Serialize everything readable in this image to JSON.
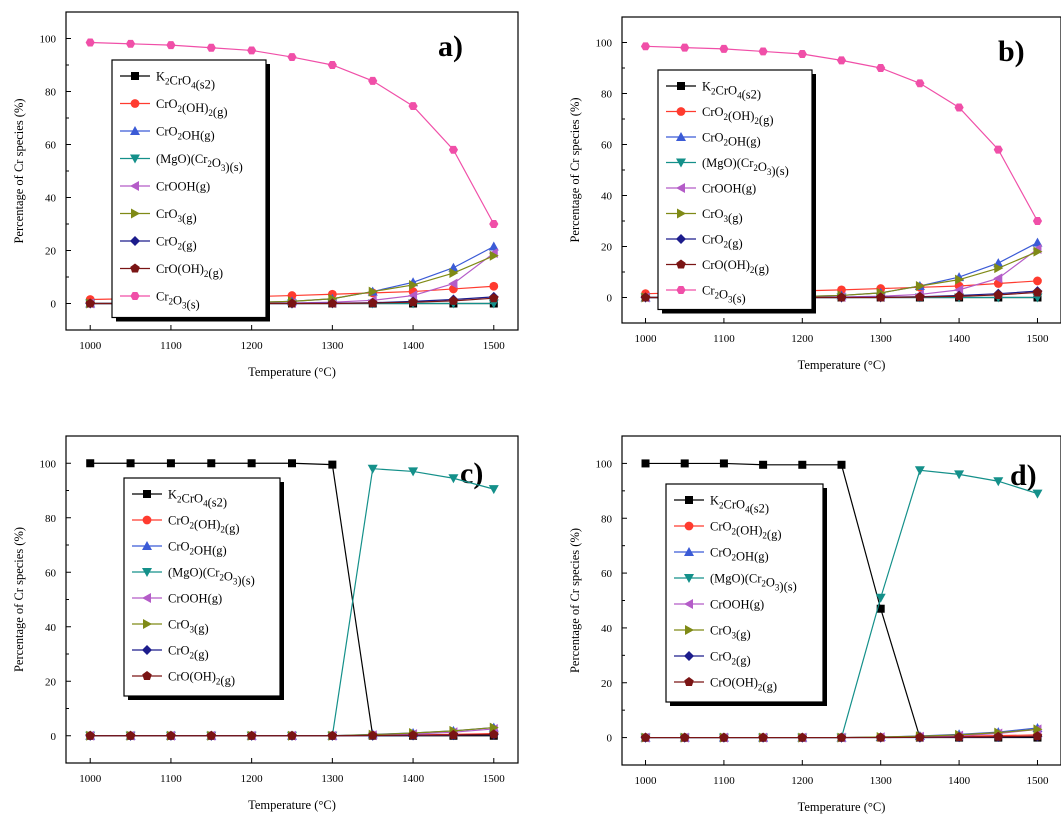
{
  "colors": {
    "K2CrO4": "#000000",
    "CrO2OH2": "#ff3b2f",
    "CrO2OH": "#3b5bd6",
    "MgOCr2O3": "#14908a",
    "CrOOH": "#b45cc8",
    "CrO3": "#7f8a16",
    "CrO2": "#1c1c8c",
    "CrOOH2": "#7a1414",
    "Cr2O3": "#f04fa8"
  },
  "chart_data": [
    {
      "type": "line",
      "panel_label": "a)",
      "xlabel": "Temperature (°C)",
      "ylabel": "Percentage of Cr species (%)",
      "xlim": [
        970,
        1530
      ],
      "ylim": [
        -10,
        110
      ],
      "x_ticks": [
        1000,
        1100,
        1200,
        1300,
        1400,
        1500
      ],
      "y_ticks": [
        0,
        20,
        40,
        60,
        80,
        100
      ],
      "x": [
        1000,
        1050,
        1100,
        1150,
        1200,
        1250,
        1300,
        1350,
        1400,
        1450,
        1500
      ],
      "legend_location": "upper-left",
      "series": [
        {
          "name": "K2CrO4(s2)",
          "sub": [
            null,
            "2",
            "4",
            null
          ],
          "base": [
            "K",
            "Cr",
            "O",
            "(s2)"
          ],
          "marker": "square",
          "color_key": "K2CrO4",
          "values": [
            0,
            0,
            0,
            0,
            0,
            0,
            0,
            0,
            0,
            0,
            0
          ]
        },
        {
          "name": "CrO2(OH)2(g)",
          "marker": "circle",
          "color_key": "CrO2OH2",
          "values": [
            1.5,
            1.8,
            2.0,
            2.3,
            2.6,
            3.0,
            3.5,
            4.0,
            4.5,
            5.5,
            6.5
          ]
        },
        {
          "name": "CrO2OH(g)",
          "marker": "triangle-up",
          "color_key": "CrO2OH",
          "values": [
            0,
            0,
            0.1,
            0.2,
            0.4,
            0.8,
            1.8,
            4.5,
            8,
            13.5,
            21.5
          ]
        },
        {
          "name": "(MgO)(Cr2O3)(s)",
          "marker": "triangle-down",
          "color_key": "MgOCr2O3",
          "values": [
            0,
            0,
            0,
            0,
            0,
            0,
            0,
            0,
            0,
            0,
            0
          ]
        },
        {
          "name": "CrOOH(g)",
          "marker": "triangle-left",
          "color_key": "CrOOH",
          "values": [
            0,
            0,
            0,
            0,
            0.1,
            0.2,
            0.5,
            1.2,
            3,
            7.5,
            19
          ]
        },
        {
          "name": "CrO3(g)",
          "marker": "triangle-right",
          "color_key": "CrO3",
          "values": [
            0,
            0,
            0.1,
            0.2,
            0.4,
            0.8,
            1.8,
            4.5,
            7,
            11.5,
            18
          ]
        },
        {
          "name": "CrO2(g)",
          "marker": "diamond",
          "color_key": "CrO2",
          "values": [
            0,
            0,
            0,
            0,
            0,
            0,
            0.1,
            0.3,
            0.8,
            1.5,
            2.5
          ]
        },
        {
          "name": "CrO(OH)2(g)",
          "marker": "pentagon",
          "color_key": "CrOOH2",
          "values": [
            0,
            0,
            0,
            0,
            0,
            0,
            0,
            0.2,
            0.5,
            1.0,
            2.0
          ]
        },
        {
          "name": "Cr2O3(s)",
          "marker": "hexagon",
          "color_key": "Cr2O3",
          "values": [
            98.5,
            98,
            97.5,
            96.5,
            95.5,
            93,
            90,
            84,
            74.5,
            58,
            30
          ]
        }
      ]
    },
    {
      "type": "line",
      "panel_label": "b)",
      "xlabel": "Temperature (°C)",
      "ylabel": "Percentage of Cr species (%)",
      "xlim": [
        970,
        1530
      ],
      "ylim": [
        -10,
        110
      ],
      "x_ticks": [
        1000,
        1100,
        1200,
        1300,
        1400,
        1500
      ],
      "y_ticks": [
        0,
        20,
        40,
        60,
        80,
        100
      ],
      "x": [
        1000,
        1050,
        1100,
        1150,
        1200,
        1250,
        1300,
        1350,
        1400,
        1450,
        1500
      ],
      "legend_location": "upper-left",
      "series": [
        {
          "name": "K2CrO4(s2)",
          "marker": "square",
          "color_key": "K2CrO4",
          "values": [
            0,
            0,
            0,
            0,
            0,
            0,
            0,
            0,
            0,
            0,
            0
          ]
        },
        {
          "name": "CrO2(OH)2(g)",
          "marker": "circle",
          "color_key": "CrO2OH2",
          "values": [
            1.5,
            1.8,
            2.0,
            2.3,
            2.6,
            3.0,
            3.5,
            4.0,
            4.5,
            5.5,
            6.5
          ]
        },
        {
          "name": "CrO2OH(g)",
          "marker": "triangle-up",
          "color_key": "CrO2OH",
          "values": [
            0,
            0,
            0.1,
            0.2,
            0.4,
            0.8,
            1.8,
            4.5,
            8,
            13.5,
            21.5
          ]
        },
        {
          "name": "(MgO)(Cr2O3)(s)",
          "marker": "triangle-down",
          "color_key": "MgOCr2O3",
          "values": [
            0,
            0,
            0,
            0,
            0,
            0,
            0,
            0,
            0,
            0,
            0
          ]
        },
        {
          "name": "CrOOH(g)",
          "marker": "triangle-left",
          "color_key": "CrOOH",
          "values": [
            0,
            0,
            0,
            0,
            0.1,
            0.2,
            0.5,
            1.2,
            3,
            7.5,
            19
          ]
        },
        {
          "name": "CrO3(g)",
          "marker": "triangle-right",
          "color_key": "CrO3",
          "values": [
            0,
            0,
            0.1,
            0.2,
            0.4,
            0.8,
            1.8,
            4.5,
            7,
            11.5,
            18
          ]
        },
        {
          "name": "CrO2(g)",
          "marker": "diamond",
          "color_key": "CrO2",
          "values": [
            0,
            0,
            0,
            0,
            0,
            0,
            0.1,
            0.3,
            0.8,
            1.5,
            2.5
          ]
        },
        {
          "name": "CrO(OH)2(g)",
          "marker": "pentagon",
          "color_key": "CrOOH2",
          "values": [
            0,
            0,
            0,
            0,
            0,
            0,
            0,
            0.2,
            0.5,
            1.0,
            2.0
          ]
        },
        {
          "name": "Cr2O3(s)",
          "marker": "hexagon",
          "color_key": "Cr2O3",
          "values": [
            98.5,
            98,
            97.5,
            96.5,
            95.5,
            93,
            90,
            84,
            74.5,
            58,
            30
          ]
        }
      ]
    },
    {
      "type": "line",
      "panel_label": "c)",
      "xlabel": "Temperature (°C)",
      "ylabel": "Percentage of Cr species (%)",
      "xlim": [
        970,
        1530
      ],
      "ylim": [
        -10,
        110
      ],
      "x_ticks": [
        1000,
        1100,
        1200,
        1300,
        1400,
        1500
      ],
      "y_ticks": [
        0,
        20,
        40,
        60,
        80,
        100
      ],
      "x": [
        1000,
        1050,
        1100,
        1150,
        1200,
        1250,
        1300,
        1350,
        1400,
        1450,
        1500
      ],
      "legend_location": "upper-left",
      "series": [
        {
          "name": "K2CrO4(s2)",
          "marker": "square",
          "color_key": "K2CrO4",
          "values": [
            100,
            100,
            100,
            100,
            100,
            100,
            99.5,
            0,
            0,
            0,
            0
          ]
        },
        {
          "name": "CrO2(OH)2(g)",
          "marker": "circle",
          "color_key": "CrO2OH2",
          "values": [
            0,
            0,
            0,
            0,
            0,
            0,
            0,
            0.2,
            0.3,
            0.5,
            0.8
          ]
        },
        {
          "name": "CrO2OH(g)",
          "marker": "triangle-up",
          "color_key": "CrO2OH",
          "values": [
            0,
            0,
            0,
            0,
            0,
            0,
            0,
            0.5,
            1.0,
            1.8,
            3.0
          ]
        },
        {
          "name": "(MgO)(Cr2O3)(s)",
          "marker": "triangle-down",
          "color_key": "MgOCr2O3",
          "values": [
            0,
            0,
            0,
            0,
            0,
            0,
            0,
            98,
            97,
            94.5,
            90.5
          ]
        },
        {
          "name": "CrOOH(g)",
          "marker": "triangle-left",
          "color_key": "CrOOH",
          "values": [
            0,
            0,
            0,
            0,
            0,
            0,
            0,
            0.2,
            0.6,
            1.3,
            2.5
          ]
        },
        {
          "name": "CrO3(g)",
          "marker": "triangle-right",
          "color_key": "CrO3",
          "values": [
            0,
            0,
            0,
            0,
            0,
            0,
            0,
            0.4,
            1.0,
            1.8,
            3.0
          ]
        },
        {
          "name": "CrO2(g)",
          "marker": "diamond",
          "color_key": "CrO2",
          "values": [
            0,
            0,
            0,
            0,
            0,
            0,
            0,
            0,
            0.1,
            0.2,
            0.4
          ]
        },
        {
          "name": "CrO(OH)2(g)",
          "marker": "pentagon",
          "color_key": "CrOOH2",
          "values": [
            0,
            0,
            0,
            0,
            0,
            0,
            0,
            0.1,
            0.2,
            0.3,
            0.5
          ]
        }
      ]
    },
    {
      "type": "line",
      "panel_label": "d)",
      "xlabel": "Temperature (°C)",
      "ylabel": "Percentage of Cr species (%)",
      "xlim": [
        970,
        1530
      ],
      "ylim": [
        -10,
        110
      ],
      "x_ticks": [
        1000,
        1100,
        1200,
        1300,
        1400,
        1500
      ],
      "y_ticks": [
        0,
        20,
        40,
        60,
        80,
        100
      ],
      "x": [
        1000,
        1050,
        1100,
        1150,
        1200,
        1250,
        1300,
        1350,
        1400,
        1450,
        1500
      ],
      "legend_location": "upper-left",
      "series": [
        {
          "name": "K2CrO4(s2)",
          "marker": "square",
          "color_key": "K2CrO4",
          "values": [
            100,
            100,
            100,
            99.5,
            99.5,
            99.5,
            47,
            0,
            0,
            0,
            0
          ]
        },
        {
          "name": "CrO2(OH)2(g)",
          "marker": "circle",
          "color_key": "CrO2OH2",
          "values": [
            0,
            0,
            0,
            0,
            0,
            0,
            0.1,
            0.3,
            0.5,
            0.7,
            1.0
          ]
        },
        {
          "name": "CrO2OH(g)",
          "marker": "triangle-up",
          "color_key": "CrO2OH",
          "values": [
            0,
            0,
            0,
            0,
            0,
            0,
            0.2,
            0.6,
            1.2,
            2.0,
            3.5
          ]
        },
        {
          "name": "(MgO)(Cr2O3)(s)",
          "marker": "triangle-down",
          "color_key": "MgOCr2O3",
          "values": [
            0,
            0,
            0,
            0,
            0,
            0,
            51,
            97.5,
            96,
            93.5,
            89
          ]
        },
        {
          "name": "CrOOH(g)",
          "marker": "triangle-left",
          "color_key": "CrOOH",
          "values": [
            0,
            0,
            0,
            0,
            0,
            0,
            0.1,
            0.3,
            0.7,
            1.5,
            3.0
          ]
        },
        {
          "name": "CrO3(g)",
          "marker": "triangle-right",
          "color_key": "CrO3",
          "values": [
            0,
            0,
            0,
            0,
            0,
            0,
            0.2,
            0.5,
            1.0,
            1.8,
            3.0
          ]
        },
        {
          "name": "CrO2(g)",
          "marker": "diamond",
          "color_key": "CrO2",
          "values": [
            0,
            0,
            0,
            0,
            0,
            0,
            0,
            0,
            0.1,
            0.2,
            0.4
          ]
        },
        {
          "name": "CrO(OH)2(g)",
          "marker": "pentagon",
          "color_key": "CrOOH2",
          "values": [
            0,
            0,
            0,
            0,
            0,
            0,
            0,
            0.1,
            0.2,
            0.3,
            0.5
          ]
        }
      ]
    }
  ]
}
